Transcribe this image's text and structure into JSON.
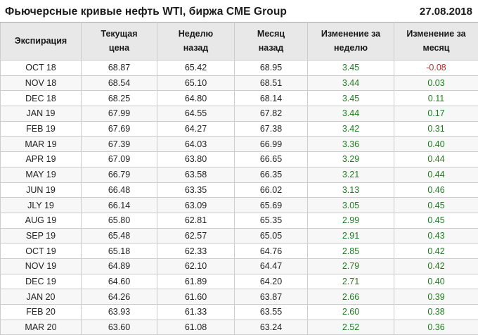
{
  "header": {
    "title": "Фьючерсные кривые нефть WTI, биржа CME Group",
    "date": "27.08.2018"
  },
  "colors": {
    "positive": "#1e7d1e",
    "negative": "#c62828",
    "header_bg": "#e8e8e8",
    "border": "#cccccc",
    "stripe": "#f7f7f7"
  },
  "table": {
    "column_headers": [
      "Экспирация",
      "Текущая\nцена",
      "Неделю\nназад",
      "Месяц\nназад",
      "Изменение за\nнеделю",
      "Изменение за\nмесяц"
    ]
  },
  "chart_data": {
    "type": "table",
    "title": "Фьючерсные кривые нефть WTI, биржа CME Group",
    "date": "27.08.2018",
    "columns": [
      "Экспирация",
      "Текущая цена",
      "Неделю назад",
      "Месяц назад",
      "Изменение за неделю",
      "Изменение за месяц"
    ],
    "rows": [
      [
        "OCT 18",
        68.87,
        65.42,
        68.95,
        3.45,
        -0.08
      ],
      [
        "NOV 18",
        68.54,
        65.1,
        68.51,
        3.44,
        0.03
      ],
      [
        "DEC 18",
        68.25,
        64.8,
        68.14,
        3.45,
        0.11
      ],
      [
        "JAN 19",
        67.99,
        64.55,
        67.82,
        3.44,
        0.17
      ],
      [
        "FEB 19",
        67.69,
        64.27,
        67.38,
        3.42,
        0.31
      ],
      [
        "MAR 19",
        67.39,
        64.03,
        66.99,
        3.36,
        0.4
      ],
      [
        "APR 19",
        67.09,
        63.8,
        66.65,
        3.29,
        0.44
      ],
      [
        "MAY 19",
        66.79,
        63.58,
        66.35,
        3.21,
        0.44
      ],
      [
        "JUN 19",
        66.48,
        63.35,
        66.02,
        3.13,
        0.46
      ],
      [
        "JLY 19",
        66.14,
        63.09,
        65.69,
        3.05,
        0.45
      ],
      [
        "AUG 19",
        65.8,
        62.81,
        65.35,
        2.99,
        0.45
      ],
      [
        "SEP 19",
        65.48,
        62.57,
        65.05,
        2.91,
        0.43
      ],
      [
        "OCT 19",
        65.18,
        62.33,
        64.76,
        2.85,
        0.42
      ],
      [
        "NOV 19",
        64.89,
        62.1,
        64.47,
        2.79,
        0.42
      ],
      [
        "DEC 19",
        64.6,
        61.89,
        64.2,
        2.71,
        0.4
      ],
      [
        "JAN 20",
        64.26,
        61.6,
        63.87,
        2.66,
        0.39
      ],
      [
        "FEB 20",
        63.93,
        61.33,
        63.55,
        2.6,
        0.38
      ],
      [
        "MAR 20",
        63.6,
        61.08,
        63.24,
        2.52,
        0.36
      ]
    ]
  }
}
